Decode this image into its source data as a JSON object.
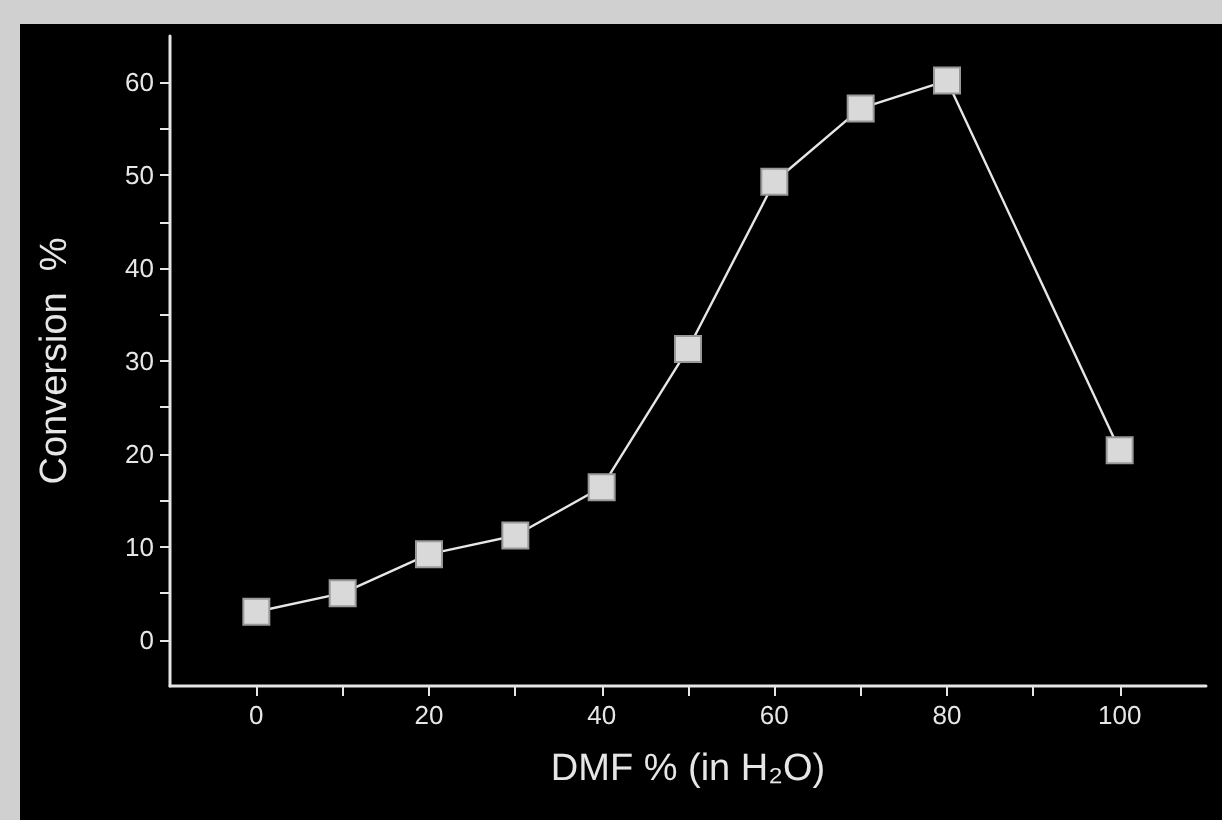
{
  "chart_data": {
    "type": "line",
    "xlabel": "DMF % (in H₂O)",
    "ylabel": "Conversion  %",
    "x": [
      0,
      10,
      20,
      30,
      40,
      50,
      60,
      70,
      80,
      100
    ],
    "series": [
      {
        "color": "#d9d9d9",
        "values": [
          3,
          5,
          9.2,
          11.2,
          16.4,
          31.3,
          49.3,
          57.2,
          60.2,
          20.4
        ]
      }
    ],
    "xlim": [
      -10,
      110
    ],
    "xticks": [
      0,
      {
        "value": 10,
        "label": null
      },
      20,
      {
        "value": 30,
        "label": null
      },
      40,
      {
        "value": 50,
        "label": null
      },
      60,
      {
        "value": 70,
        "label": null
      },
      80,
      {
        "value": 90,
        "label": null
      },
      100
    ],
    "ylim": [
      -5,
      65
    ],
    "yticks": [
      0,
      {
        "value": 5,
        "label": null
      },
      10,
      {
        "value": 15,
        "label": null
      },
      20,
      {
        "value": 25,
        "label": null
      },
      30,
      {
        "value": 35,
        "label": null
      },
      40,
      {
        "value": 45,
        "label": null
      },
      50,
      {
        "value": 55,
        "label": null
      },
      60
    ],
    "marker": "square",
    "line_style": "solid",
    "grid": false
  }
}
